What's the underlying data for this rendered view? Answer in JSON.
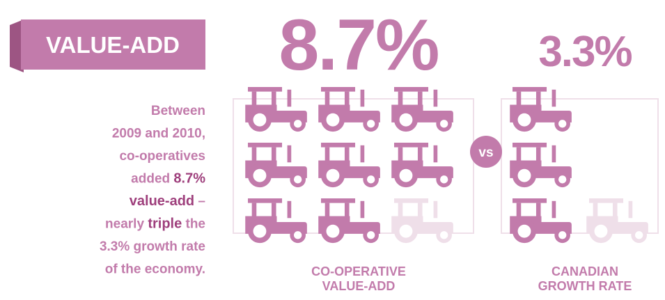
{
  "banner": "VALUE-ADD",
  "description": [
    [
      {
        "text": "Between"
      }
    ],
    [
      {
        "text": "2009 and 2010,"
      }
    ],
    [
      {
        "text": "co-operatives"
      }
    ],
    [
      {
        "text": "added "
      },
      {
        "text": "8.7%",
        "strong": true
      }
    ],
    [
      {
        "text": "value-add",
        "strong": true
      },
      {
        "text": " –"
      }
    ],
    [
      {
        "text": "nearly "
      },
      {
        "text": "triple",
        "strong": true
      },
      {
        "text": " the"
      }
    ],
    [
      {
        "text": "3.3% growth rate"
      }
    ],
    [
      {
        "text": "of the economy."
      }
    ]
  ],
  "versus": "vs",
  "panels": [
    {
      "value": 8.7,
      "value_label": "8.7%",
      "label": [
        "CO-OPERATIVE",
        "VALUE-ADD"
      ],
      "color": "#c27bab",
      "faded_color": "#efdfe9"
    },
    {
      "value": 3.3,
      "value_label": "3.3%",
      "label": [
        "CANADIAN",
        "GROWTH RATE"
      ],
      "color": "#c27bab",
      "faded_color": "#efdfe9"
    }
  ]
}
